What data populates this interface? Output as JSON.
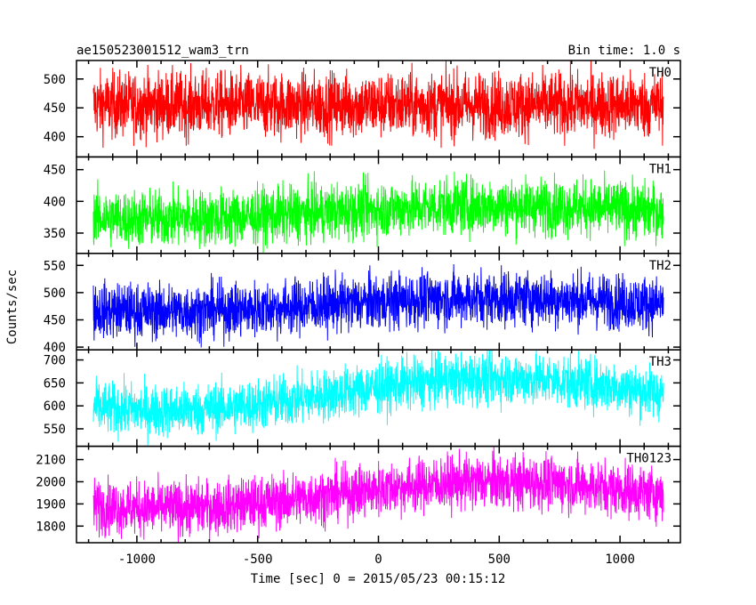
{
  "chart_data": {
    "type": "line",
    "title": "ae150523001512_wam3_trn",
    "bin_time": "Bin time: 1.0 s",
    "xlabel": "Time [sec] 0 = 2015/05/23 00:15:12",
    "ylabel": "Counts/sec",
    "xlim": [
      -1250,
      1250
    ],
    "x_ticks": [
      -1000,
      -500,
      0,
      500,
      1000
    ],
    "x_range_data": [
      -1180,
      1180
    ],
    "grid": false,
    "panels": [
      {
        "name": "TH0",
        "color": "#ff0000",
        "ylim": [
          365,
          532
        ],
        "y_ticks": [
          400,
          450,
          500
        ],
        "mean": 455,
        "spread": 28,
        "trend": 0
      },
      {
        "name": "TH1",
        "color": "#00ff00",
        "ylim": [
          318,
          470
        ],
        "y_ticks": [
          350,
          400,
          450
        ],
        "mean": 383,
        "spread": 22,
        "trend": 10
      },
      {
        "name": "TH2",
        "color": "#0000ff",
        "ylim": [
          395,
          572
        ],
        "y_ticks": [
          400,
          450,
          500,
          550
        ],
        "mean": 478,
        "spread": 25,
        "trend": 12
      },
      {
        "name": "TH3",
        "color": "#00ffff",
        "ylim": [
          512,
          722
        ],
        "y_ticks": [
          550,
          600,
          650,
          700
        ],
        "mean": 625,
        "spread": 28,
        "trend": 35
      },
      {
        "name": "TH0123",
        "color": "#ff00ff",
        "ylim": [
          1725,
          2160
        ],
        "y_ticks": [
          1800,
          1900,
          2000,
          2100
        ],
        "mean": 1940,
        "spread": 60,
        "trend": 60
      }
    ]
  }
}
